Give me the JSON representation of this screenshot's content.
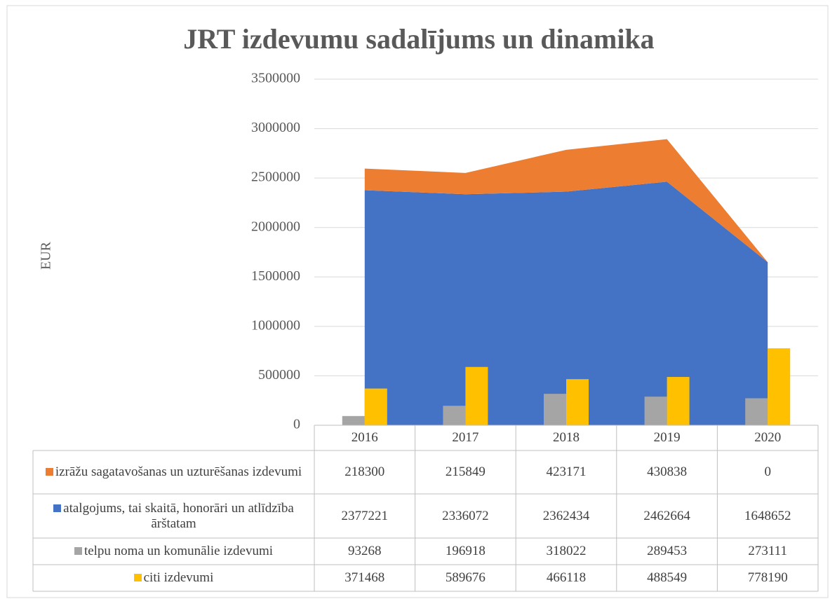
{
  "chart_data": {
    "type": "combo",
    "title": "JRT izdevumu sadalījums un dinamika",
    "y_label": "EUR",
    "categories": [
      "2016",
      "2017",
      "2018",
      "2019",
      "2020"
    ],
    "series": [
      {
        "name": "izrāžu sagatavošanas un uzturēšanas izdevumi",
        "type": "area",
        "stacked": true,
        "color": "#ed7d31",
        "values": [
          218300,
          215849,
          423171,
          430838,
          0
        ]
      },
      {
        "name": "atalgojums, tai skaitā, honorāri un atlīdzība ārštatam",
        "type": "area",
        "stacked": true,
        "color": "#4472c4",
        "values": [
          2377221,
          2336072,
          2362434,
          2462664,
          1648652
        ]
      },
      {
        "name": "telpu noma un komunālie izdevumi",
        "type": "bar",
        "color": "#a5a5a5",
        "values": [
          93268,
          196918,
          318022,
          289453,
          273111
        ]
      },
      {
        "name": "citi izdevumi",
        "type": "bar",
        "color": "#ffc000",
        "values": [
          371468,
          589676,
          466118,
          488549,
          778190
        ]
      }
    ],
    "ylim": [
      0,
      3500000
    ],
    "yticks": [
      0,
      500000,
      1000000,
      1500000,
      2000000,
      2500000,
      3000000,
      3500000
    ],
    "grid": true,
    "data_table": true
  }
}
